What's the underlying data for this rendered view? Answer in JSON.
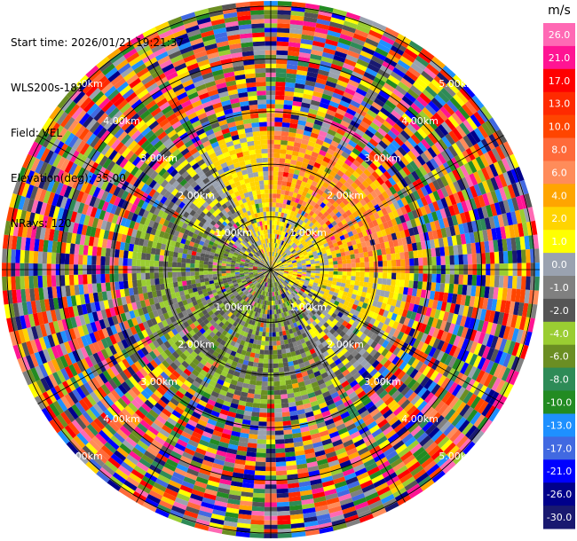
{
  "info": {
    "start_time": "Start time: 2026/01/21 19:21:37",
    "station": "WLS200s-181",
    "field": "Field: VEL",
    "elevation": "Elevation(deg): 35.00",
    "nrays": "NRays: 120"
  },
  "chart_data": {
    "type": "heatmap",
    "projection": "polar-ppi",
    "field": "VEL",
    "unit": "m/s",
    "colorbar": {
      "unit": "m/s",
      "ticks": [
        "26.0",
        "21.0",
        "17.0",
        "13.0",
        "10.0",
        "8.0",
        "6.0",
        "4.0",
        "2.0",
        "1.0",
        "0.0",
        "-1.0",
        "-2.0",
        "-4.0",
        "-6.0",
        "-8.0",
        "-10.0",
        "-13.0",
        "-17.0",
        "-21.0",
        "-26.0",
        "-30.0"
      ],
      "colors": [
        "#ff69b4",
        "#ff1493",
        "#ff0000",
        "#ff2a00",
        "#ff4500",
        "#ff6a3a",
        "#ff8c5a",
        "#ffa500",
        "#ffd400",
        "#ffff00",
        "#9aa2b0",
        "#808080",
        "#555555",
        "#9acd32",
        "#6b8e23",
        "#2e8b57",
        "#228b22",
        "#1e90ff",
        "#4169e1",
        "#0000ff",
        "#00008b",
        "#191970"
      ]
    },
    "range_ring_labels_km": [
      "1.00km",
      "2.00km",
      "3.00km",
      "4.00km",
      "5.00km"
    ],
    "range_rings_km": [
      1,
      2,
      3,
      4,
      5
    ],
    "max_range_km": 5.1,
    "nrays": 120,
    "pattern": "Noise beyond ~2.5 km. Near field: positive velocities (yellow/orange) toward north-east, negative (green) toward south-west."
  }
}
